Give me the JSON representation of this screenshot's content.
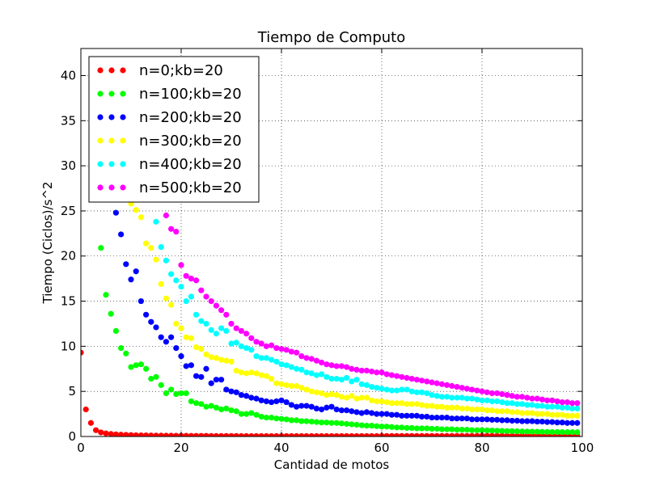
{
  "chart_data": {
    "type": "scatter",
    "title": "Tiempo de Computo",
    "xlabel": "Cantidad de motos",
    "ylabel": "Tiempo (Ciclos)/s^2",
    "xlim": [
      0,
      100
    ],
    "ylim": [
      0,
      43
    ],
    "xticks": [
      0,
      20,
      40,
      60,
      80,
      100
    ],
    "yticks": [
      0,
      5,
      10,
      15,
      20,
      25,
      30,
      35,
      40
    ],
    "grid": true,
    "legend_position": "top-left",
    "x": [
      0,
      1,
      2,
      3,
      4,
      5,
      6,
      7,
      8,
      9,
      10,
      11,
      12,
      13,
      14,
      15,
      16,
      17,
      18,
      19,
      20,
      21,
      22,
      23,
      24,
      25,
      26,
      27,
      28,
      29,
      30,
      31,
      32,
      33,
      34,
      35,
      36,
      37,
      38,
      39,
      40,
      41,
      42,
      43,
      44,
      45,
      46,
      47,
      48,
      49,
      50,
      51,
      52,
      53,
      54,
      55,
      56,
      57,
      58,
      59,
      60,
      61,
      62,
      63,
      64,
      65,
      66,
      67,
      68,
      69,
      70,
      71,
      72,
      73,
      74,
      75,
      76,
      77,
      78,
      79,
      80,
      81,
      82,
      83,
      84,
      85,
      86,
      87,
      88,
      89,
      90,
      91,
      92,
      93,
      94,
      95,
      96,
      97,
      98,
      99
    ],
    "series": [
      {
        "name": "n=0;kb=20",
        "color": "#ff0000",
        "values": [
          9.3,
          3.0,
          1.5,
          0.7,
          0.45,
          0.35,
          0.28,
          0.24,
          0.2,
          0.18,
          0.16,
          0.14,
          0.13,
          0.12,
          0.11,
          0.1,
          0.1,
          0.09,
          0.09,
          0.08,
          0.08,
          0.08,
          0.07,
          0.07,
          0.07,
          0.07,
          0.06,
          0.06,
          0.06,
          0.06,
          0.06,
          0.06,
          0.05,
          0.05,
          0.05,
          0.05,
          0.05,
          0.05,
          0.05,
          0.05,
          0.05,
          0.05,
          0.05,
          0.05,
          0.05,
          0.05,
          0.05,
          0.05,
          0.05,
          0.05,
          0.05,
          0.05,
          0.05,
          0.05,
          0.05,
          0.05,
          0.05,
          0.05,
          0.05,
          0.05,
          0.06,
          0.06,
          0.06,
          0.06,
          0.06,
          0.06,
          0.06,
          0.06,
          0.06,
          0.06,
          0.06,
          0.06,
          0.06,
          0.06,
          0.06,
          0.06,
          0.06,
          0.06,
          0.06,
          0.06,
          0.07,
          0.07,
          0.07,
          0.07,
          0.07,
          0.07,
          0.07,
          0.07,
          0.07,
          0.07,
          0.07,
          0.07,
          0.07,
          0.07,
          0.07,
          0.07,
          0.07,
          0.07,
          0.07,
          0.07
        ]
      },
      {
        "name": "n=100;kb=20",
        "color": "#00ff00",
        "values": [
          null,
          null,
          null,
          null,
          20.9,
          15.7,
          13.6,
          11.7,
          9.8,
          9.2,
          7.7,
          7.9,
          8.0,
          7.5,
          6.4,
          6.6,
          5.7,
          4.8,
          5.2,
          4.7,
          4.8,
          4.8,
          3.9,
          3.7,
          3.6,
          3.3,
          3.4,
          3.2,
          3.0,
          3.1,
          2.9,
          2.8,
          2.5,
          2.5,
          2.6,
          2.4,
          2.2,
          2.1,
          2.1,
          2.0,
          1.95,
          1.9,
          1.8,
          1.8,
          1.7,
          1.7,
          1.65,
          1.6,
          1.55,
          1.55,
          1.5,
          1.5,
          1.45,
          1.4,
          1.35,
          1.3,
          1.25,
          1.2,
          1.2,
          1.15,
          1.1,
          1.1,
          1.05,
          1.0,
          1.0,
          0.95,
          0.95,
          0.9,
          0.9,
          0.9,
          0.85,
          0.85,
          0.8,
          0.8,
          0.8,
          0.75,
          0.75,
          0.75,
          0.7,
          0.7,
          0.7,
          0.68,
          0.66,
          0.64,
          0.62,
          0.6,
          0.6,
          0.58,
          0.56,
          0.55,
          0.54,
          0.53,
          0.52,
          0.51,
          0.5,
          0.5,
          0.49,
          0.48,
          0.48,
          0.47
        ]
      },
      {
        "name": "n=200;kb=20",
        "color": "#0000ff",
        "values": [
          null,
          null,
          null,
          null,
          null,
          null,
          null,
          24.8,
          22.4,
          19.1,
          17.4,
          18.3,
          15.0,
          13.5,
          12.7,
          12.1,
          11.0,
          10.5,
          11.0,
          9.8,
          8.9,
          7.8,
          7.9,
          6.7,
          6.6,
          7.5,
          5.9,
          6.3,
          6.3,
          5.2,
          5.0,
          4.9,
          4.6,
          4.5,
          4.3,
          4.2,
          4.0,
          3.9,
          3.8,
          3.9,
          4.0,
          3.8,
          3.5,
          3.3,
          3.4,
          3.4,
          3.3,
          3.1,
          3.0,
          3.2,
          3.3,
          3.0,
          2.9,
          2.9,
          2.8,
          2.7,
          2.6,
          2.7,
          2.6,
          2.5,
          2.5,
          2.5,
          2.4,
          2.4,
          2.3,
          2.3,
          2.3,
          2.3,
          2.2,
          2.2,
          2.1,
          2.1,
          2.1,
          2.1,
          2.0,
          2.0,
          2.0,
          2.0,
          1.9,
          1.9,
          1.9,
          1.9,
          1.85,
          1.85,
          1.8,
          1.8,
          1.75,
          1.75,
          1.7,
          1.7,
          1.7,
          1.65,
          1.65,
          1.6,
          1.6,
          1.55,
          1.55,
          1.5,
          1.5,
          1.5
        ]
      },
      {
        "name": "n=300;kb=20",
        "color": "#ffff00",
        "values": [
          null,
          null,
          null,
          null,
          null,
          null,
          null,
          null,
          null,
          null,
          25.8,
          25.1,
          24.3,
          21.4,
          20.9,
          19.6,
          16.9,
          15.3,
          14.6,
          12.5,
          12.0,
          11.0,
          10.9,
          9.9,
          9.7,
          9.1,
          8.8,
          8.7,
          8.5,
          8.4,
          8.3,
          7.3,
          7.1,
          7.0,
          7.1,
          7.0,
          6.8,
          6.7,
          6.4,
          5.9,
          5.8,
          5.7,
          5.6,
          5.6,
          5.4,
          5.2,
          5.0,
          4.9,
          4.8,
          4.6,
          4.7,
          4.6,
          4.4,
          4.3,
          4.5,
          4.2,
          4.3,
          4.3,
          4.0,
          3.9,
          3.9,
          3.8,
          3.7,
          3.7,
          3.7,
          3.6,
          3.6,
          3.6,
          3.5,
          3.4,
          3.4,
          3.3,
          3.3,
          3.2,
          3.2,
          3.2,
          3.1,
          3.1,
          3.0,
          3.0,
          3.0,
          2.9,
          2.9,
          2.8,
          2.8,
          2.8,
          2.7,
          2.7,
          2.6,
          2.6,
          2.6,
          2.5,
          2.5,
          2.5,
          2.4,
          2.4,
          2.4,
          2.3,
          2.3,
          2.3
        ]
      },
      {
        "name": "n=400;kb=20",
        "color": "#00ffff",
        "values": [
          null,
          null,
          null,
          null,
          null,
          null,
          null,
          null,
          null,
          null,
          null,
          null,
          null,
          null,
          null,
          23.8,
          21.0,
          19.5,
          18.0,
          17.3,
          16.6,
          15.0,
          15.5,
          13.5,
          12.8,
          12.5,
          11.8,
          11.4,
          12.0,
          11.7,
          10.3,
          10.4,
          10.0,
          9.8,
          9.6,
          8.9,
          8.7,
          8.7,
          8.5,
          8.3,
          8.0,
          7.9,
          7.7,
          7.5,
          7.4,
          7.1,
          7.0,
          6.8,
          6.9,
          6.6,
          6.4,
          6.4,
          6.3,
          6.5,
          6.1,
          6.3,
          5.8,
          5.7,
          5.5,
          5.4,
          5.3,
          5.2,
          5.1,
          5.1,
          5.2,
          5.2,
          5.0,
          4.9,
          4.9,
          4.8,
          4.6,
          4.5,
          4.4,
          4.4,
          4.3,
          4.3,
          4.3,
          4.2,
          4.2,
          4.1,
          4.0,
          4.0,
          3.9,
          3.9,
          3.8,
          3.7,
          3.7,
          3.6,
          3.6,
          3.5,
          3.5,
          3.4,
          3.4,
          3.3,
          3.3,
          3.3,
          3.2,
          3.2,
          3.1,
          3.1
        ]
      },
      {
        "name": "n=500;kb=20",
        "color": "#ff00ff",
        "values": [
          null,
          null,
          null,
          null,
          null,
          null,
          null,
          null,
          null,
          null,
          null,
          null,
          null,
          null,
          null,
          null,
          null,
          24.5,
          23.0,
          22.7,
          19.0,
          17.8,
          17.5,
          17.3,
          16.2,
          15.5,
          15.0,
          14.5,
          14.0,
          13.5,
          12.5,
          12.0,
          11.7,
          11.4,
          10.9,
          10.5,
          10.3,
          10.0,
          10.1,
          9.8,
          9.7,
          9.6,
          9.4,
          9.3,
          8.9,
          8.7,
          8.6,
          8.4,
          8.2,
          8.0,
          7.9,
          7.8,
          7.8,
          7.7,
          7.5,
          7.4,
          7.3,
          7.3,
          7.2,
          7.1,
          7.1,
          6.9,
          6.8,
          6.7,
          6.6,
          6.5,
          6.4,
          6.3,
          6.2,
          6.1,
          6.0,
          5.9,
          5.8,
          5.7,
          5.6,
          5.5,
          5.4,
          5.3,
          5.2,
          5.1,
          5.0,
          4.9,
          4.8,
          4.8,
          4.7,
          4.6,
          4.5,
          4.4,
          4.4,
          4.3,
          4.2,
          4.2,
          4.1,
          4.0,
          4.0,
          3.9,
          3.8,
          3.8,
          3.7,
          3.7
        ]
      }
    ]
  }
}
